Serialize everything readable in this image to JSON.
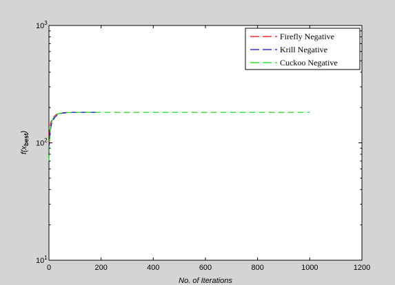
{
  "chart_data": {
    "type": "line",
    "title": "",
    "xlabel": "No. of Iterations",
    "ylabel_main": "f(x",
    "ylabel_sub": "best",
    "ylabel_end": ")",
    "xlim": [
      0,
      1200
    ],
    "ylim": [
      10,
      1000
    ],
    "yscale": "log",
    "grid": false,
    "legend_position": "top-right",
    "x_ticks": [
      0,
      200,
      400,
      600,
      800,
      1000,
      1200
    ],
    "x_tick_labels": [
      "0",
      "200",
      "400",
      "600",
      "800",
      "1000",
      "1200"
    ],
    "y_ticks": [
      10,
      100,
      1000
    ],
    "y_tick_bases": [
      "10",
      "10",
      "10"
    ],
    "y_tick_exponents": [
      "1",
      "2",
      "3"
    ],
    "series": [
      {
        "name": "Firefly Negative",
        "color": "#ff0000",
        "dash": "dashed",
        "x": [
          0,
          2,
          4,
          6,
          8,
          10,
          15,
          20,
          25,
          30,
          40,
          50,
          60,
          80,
          100,
          140,
          185
        ],
        "y": [
          95,
          120,
          135,
          145,
          150,
          155,
          162,
          168,
          172,
          175,
          178,
          180,
          181,
          182,
          182,
          182,
          182
        ]
      },
      {
        "name": "Krill Negative",
        "color": "#0000ff",
        "dash": "dashed",
        "x": [
          0,
          2,
          4,
          6,
          8,
          10,
          15,
          20,
          25,
          30,
          40,
          50,
          60,
          80,
          100,
          140,
          185
        ],
        "y": [
          90,
          100,
          115,
          128,
          138,
          145,
          155,
          162,
          167,
          171,
          176,
          179,
          180,
          181,
          182,
          182,
          182
        ]
      },
      {
        "name": "Cuckoo Negative",
        "color": "#00dd00",
        "dash": "dashed",
        "x": [
          0,
          1,
          2,
          4,
          6,
          8,
          10,
          15,
          20,
          30,
          40,
          60,
          100,
          200,
          400,
          600,
          800,
          1000
        ],
        "y": [
          70,
          85,
          100,
          120,
          135,
          145,
          150,
          160,
          167,
          174,
          178,
          181,
          182,
          182,
          182,
          182,
          182,
          182
        ]
      }
    ]
  }
}
